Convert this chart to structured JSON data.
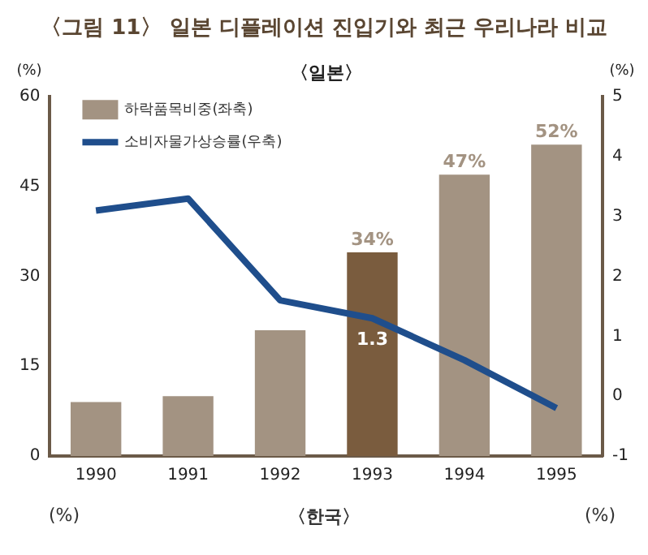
{
  "chart_data": {
    "type": "bar",
    "title": "〈그림 11〉 일본 디플레이션 진입기와 최근 우리나라 비교",
    "subtitle": "〈일본〉",
    "ylabel": "(%)",
    "y2label": "(%)",
    "categories": [
      "1990",
      "1991",
      "1992",
      "1993",
      "1994",
      "1995"
    ],
    "series": [
      {
        "name": "하락품목비중(좌축)",
        "color": "#a39382",
        "colors": [
          "#a39382",
          "#a39382",
          "#a39382",
          "#7a5c3e",
          "#a39382",
          "#a39382"
        ],
        "values": [
          9,
          10,
          21,
          34,
          47,
          52
        ],
        "value_labels": [
          null,
          null,
          null,
          "34%",
          "47%",
          "52%"
        ]
      },
      {
        "name": "소비자물가상승률(우축)",
        "type": "line",
        "axis": "y2",
        "color": "#1f4e8c",
        "values": [
          3.1,
          3.3,
          1.6,
          1.3,
          0.6,
          -0.2
        ],
        "value_labels": [
          null,
          null,
          null,
          "1.3",
          null,
          null
        ]
      }
    ],
    "ylim": [
      0,
      60
    ],
    "yticks": [
      0,
      15,
      30,
      45,
      60
    ],
    "y2lim": [
      -1,
      5
    ],
    "y2ticks": [
      -1,
      0,
      1,
      2,
      3,
      4,
      5
    ],
    "grid": false,
    "legend": "top left",
    "marker": "none",
    "annotations": [
      "(%)",
      "〈한국〉",
      "(%)"
    ]
  }
}
